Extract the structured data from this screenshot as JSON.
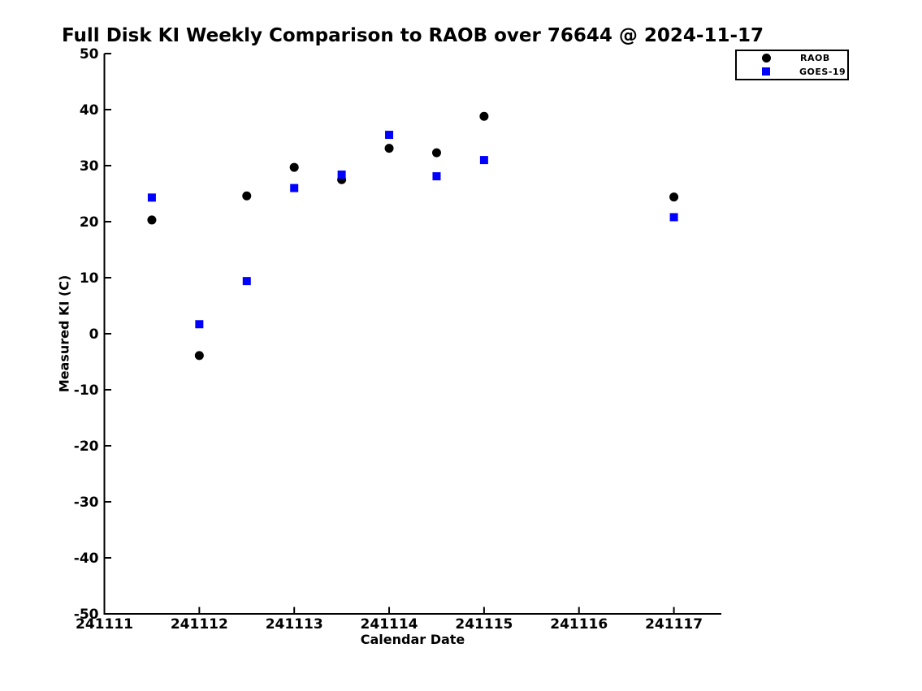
{
  "chart_data": {
    "type": "scatter",
    "title": "Full Disk KI Weekly Comparison to RAOB over 76644 @ 2024-11-17",
    "xlabel": "Calendar Date",
    "ylabel": "Measured KI (C)",
    "xlim": [
      241111,
      241117.5
    ],
    "ylim": [
      -50,
      50
    ],
    "x_ticks": [
      241111,
      241112,
      241113,
      241114,
      241115,
      241116,
      241117
    ],
    "y_ticks": [
      -50,
      -40,
      -30,
      -20,
      -10,
      0,
      10,
      20,
      30,
      40,
      50
    ],
    "grid": false,
    "legend_position": "upper-right-outside-axes",
    "axis_color": "#000000",
    "series": [
      {
        "name": "RAOB",
        "marker": "circle",
        "color": "#000000",
        "points": [
          [
            241111.5,
            20.3
          ],
          [
            241112.0,
            -3.9
          ],
          [
            241112.5,
            24.6
          ],
          [
            241113.0,
            29.7
          ],
          [
            241113.5,
            27.5
          ],
          [
            241114.0,
            33.1
          ],
          [
            241114.5,
            32.3
          ],
          [
            241115.0,
            38.8
          ],
          [
            241117.0,
            24.4
          ]
        ]
      },
      {
        "name": "GOES-19",
        "marker": "square",
        "color": "#0000ff",
        "points": [
          [
            241111.5,
            24.3
          ],
          [
            241112.0,
            1.7
          ],
          [
            241112.5,
            9.4
          ],
          [
            241113.0,
            26.0
          ],
          [
            241113.5,
            28.4
          ],
          [
            241114.0,
            35.5
          ],
          [
            241114.5,
            28.1
          ],
          [
            241115.0,
            31.0
          ],
          [
            241117.0,
            20.8
          ]
        ]
      }
    ]
  }
}
